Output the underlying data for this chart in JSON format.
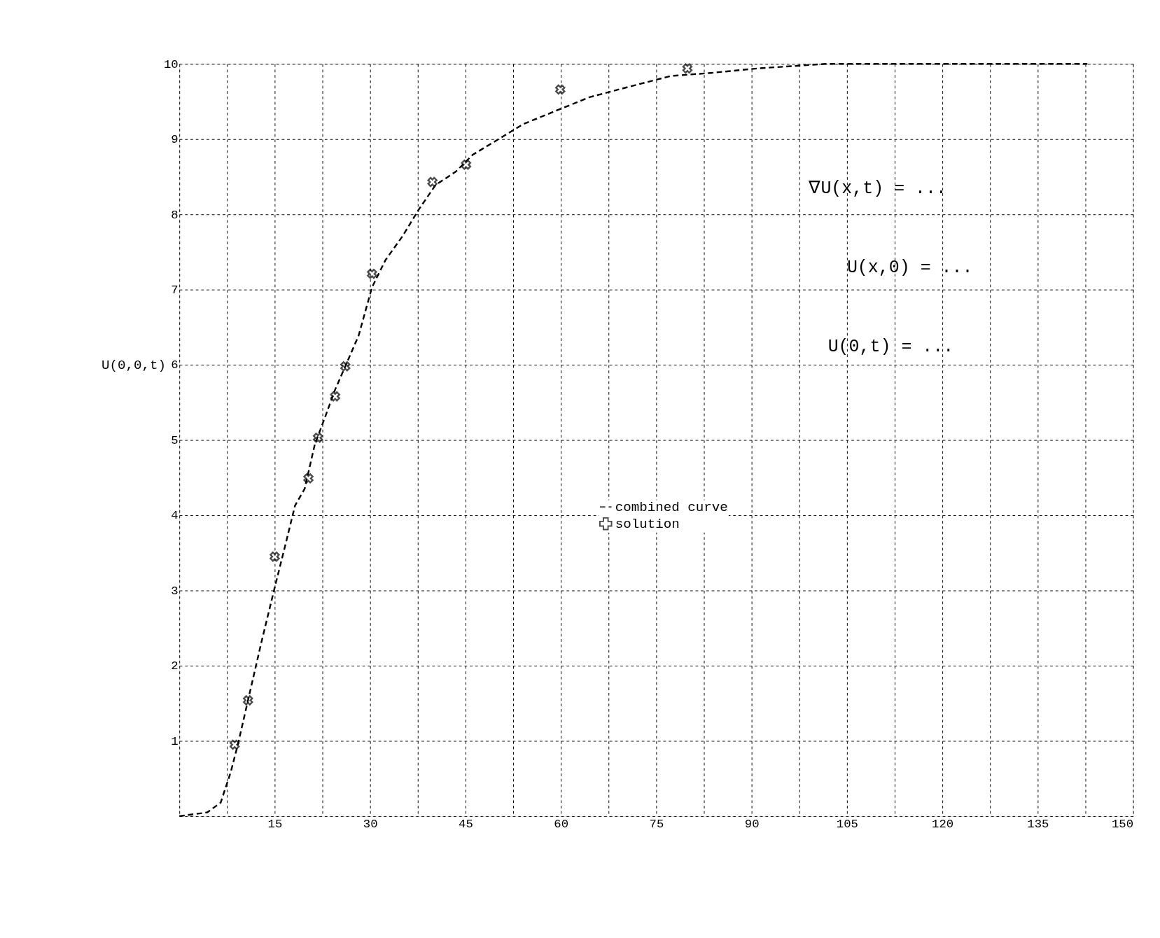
{
  "chart_data": {
    "type": "line",
    "ylabel": "U(0,0,t)",
    "xlim": [
      0,
      150
    ],
    "ylim": [
      0,
      10
    ],
    "xticks": [
      {
        "value": 0,
        "label": null
      },
      {
        "value": 7.5,
        "label": null
      },
      15,
      {
        "value": 22.5,
        "label": null
      },
      30,
      {
        "value": 37.5,
        "label": null
      },
      45,
      {
        "value": 52.5,
        "label": null
      },
      60,
      {
        "value": 67.5,
        "label": null
      },
      75,
      {
        "value": 82.5,
        "label": null
      },
      90,
      {
        "value": 97.5,
        "label": null
      },
      105,
      {
        "value": 112.5,
        "label": null
      },
      120,
      {
        "value": 127.5,
        "label": null
      },
      135,
      {
        "value": 142.5,
        "label": null
      },
      150
    ],
    "yticks": [
      {
        "value": 0,
        "label": null
      },
      1,
      2,
      3,
      4,
      5,
      6,
      7,
      8,
      9,
      10
    ],
    "grid": true,
    "legend": "center",
    "line_style": "dashed",
    "annotations": [
      "∇U(x,t) = ...",
      "U(x,0) = ...",
      "U(0,t) = ..."
    ],
    "series": [
      {
        "name": "combined curve",
        "color": "#000000",
        "x": [
          0,
          4.4,
          6.5,
          8.1,
          9.2,
          10.8,
          12.9,
          15,
          16.6,
          18.2,
          19.7,
          21.3,
          22.9,
          24.5,
          26.1,
          28.2,
          30.3,
          32.4,
          35.1,
          37.7,
          40.3,
          43.5,
          46.1,
          49.8,
          54.1,
          59.3,
          64.6,
          70.9,
          77.3,
          83.6,
          90.9,
          101.6,
          117.4,
          142.8
        ],
        "values": [
          0,
          0.05,
          0.18,
          0.59,
          0.95,
          1.54,
          2.31,
          3.04,
          3.58,
          4.13,
          4.35,
          4.94,
          5.3,
          5.67,
          5.98,
          6.39,
          7.03,
          7.39,
          7.71,
          8.07,
          8.39,
          8.57,
          8.79,
          8.98,
          9.2,
          9.38,
          9.56,
          9.7,
          9.84,
          9.88,
          9.94,
          10,
          10,
          10
        ]
      },
      {
        "name": "solution",
        "color": "#000000",
        "type": "scatter",
        "marker": "cross",
        "x": [
          8.7,
          10.8,
          15,
          20.3,
          21.8,
          24.5,
          26.1,
          30.3,
          39.8,
          45.1,
          59.9,
          79.9
        ],
        "values": [
          0.95,
          1.54,
          3.45,
          4.49,
          5.03,
          5.58,
          5.98,
          7.21,
          8.43,
          8.66,
          9.66,
          9.94
        ]
      }
    ]
  }
}
